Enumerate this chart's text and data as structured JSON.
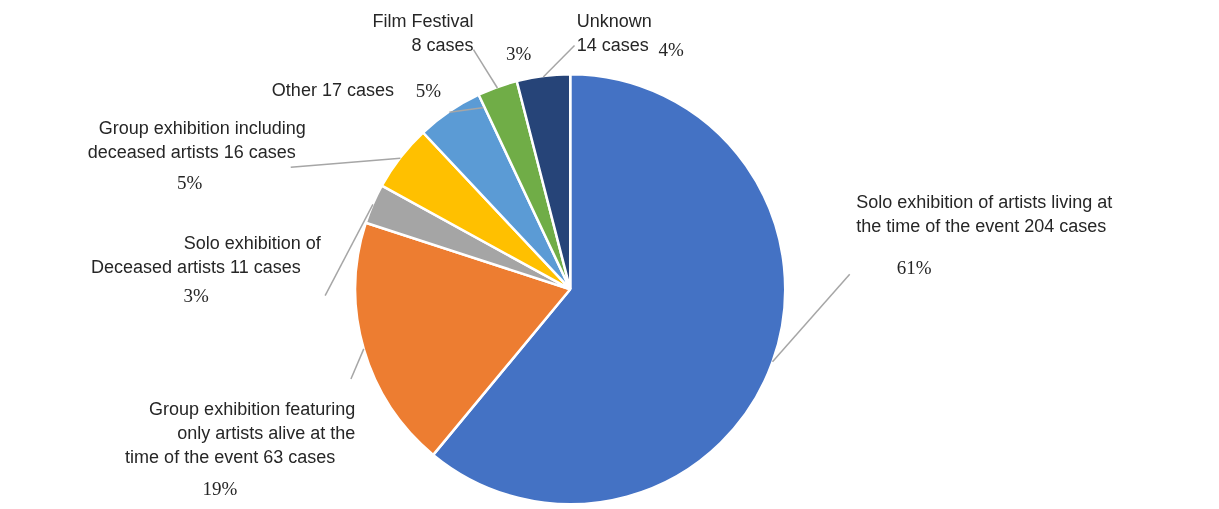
{
  "chart_data": {
    "type": "pie",
    "categories": [
      "Solo exhibition of artists living at\nthe  time of the event     204 cases",
      "Group exhibition featuring\nonly artists alive at the\n time of the event    63 cases",
      "Solo exhibition of\nDeceased artists     11 cases",
      "Group exhibition including\ndeceased artists   16 cases",
      "Other 17 cases",
      "Film Festival\n8 cases",
      "Unknown\n14 cases"
    ],
    "values": [
      61,
      19,
      3,
      5,
      5,
      3,
      4
    ],
    "colors": [
      "#4472c4",
      "#ed7d31",
      "#a5a5a5",
      "#ffc000",
      "#5b9bd5",
      "#70ad47",
      "#264478"
    ],
    "value_labels": [
      "61%",
      "19%",
      "3%",
      "5%",
      "5%",
      "3%",
      "4%"
    ]
  }
}
